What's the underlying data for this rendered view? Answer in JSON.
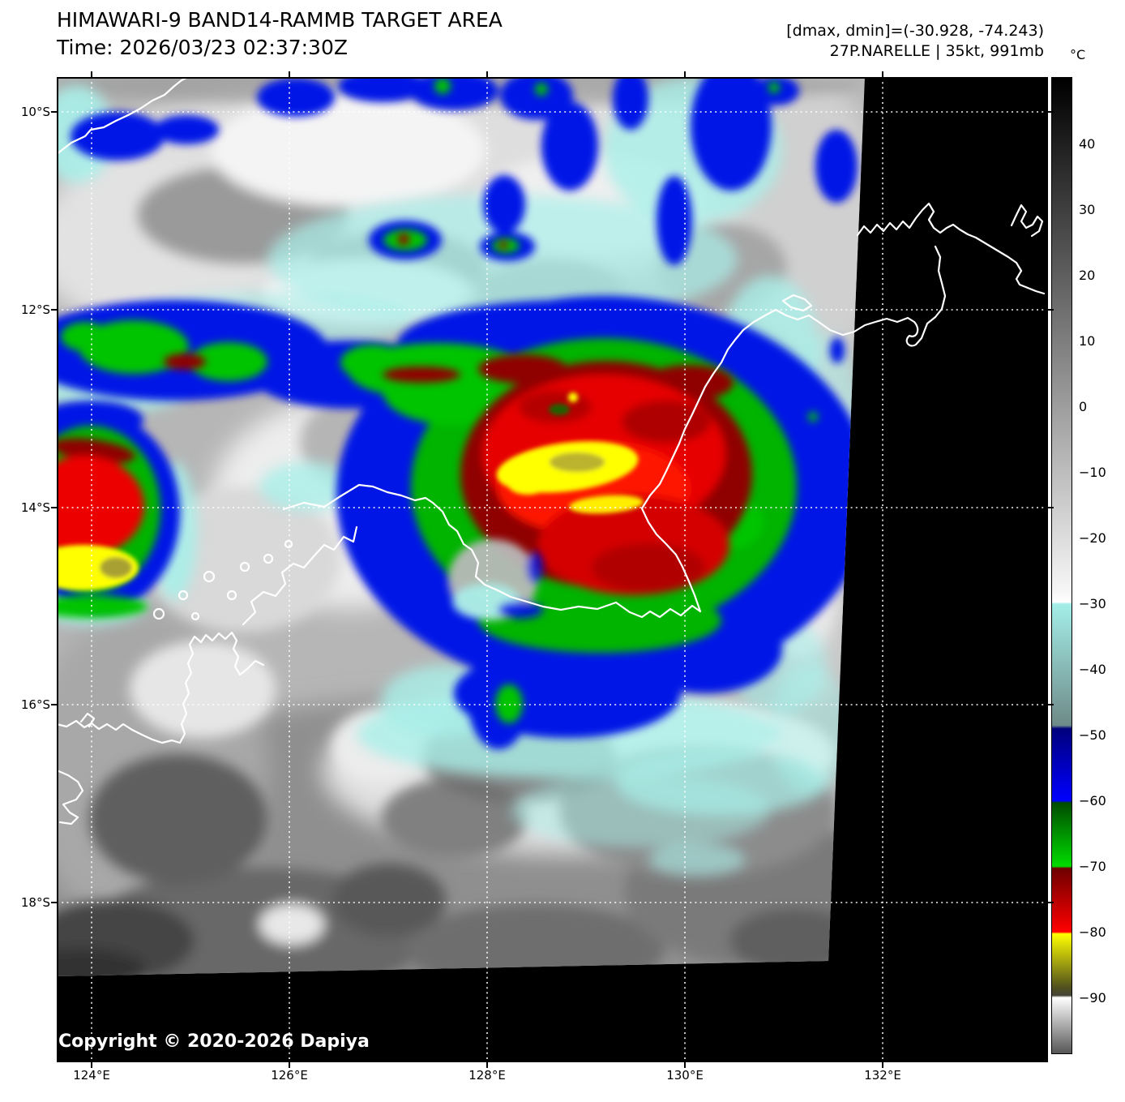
{
  "header": {
    "title": "HIMAWARI-9 BAND14-RAMMB TARGET AREA",
    "time": "Time: 2026/03/23 02:37:30Z",
    "dmax_dmin": "[dmax, dmin]=(-30.928, -74.243)",
    "storm": "27P.NARELLE | 35kt, 991mb"
  },
  "axes": {
    "lat_labels": [
      "10°S",
      "12°S",
      "14°S",
      "16°S",
      "18°S"
    ],
    "lon_labels": [
      "124°E",
      "126°E",
      "128°E",
      "130°E",
      "132°E"
    ]
  },
  "colorbar": {
    "unit": "°C",
    "tick_labels": [
      "40",
      "30",
      "20",
      "10",
      "0",
      "−10",
      "−20",
      "−30",
      "−40",
      "−50",
      "−60",
      "−70",
      "−80",
      "−90"
    ],
    "tick_values": [
      40,
      30,
      20,
      10,
      0,
      -10,
      -20,
      -30,
      -40,
      -50,
      -60,
      -70,
      -80,
      -90
    ],
    "palette": [
      {
        "t": 50,
        "c": "#000000"
      },
      {
        "t": -28,
        "c": "#f6f6f6"
      },
      {
        "t": -29.7,
        "c": "#ffffff"
      },
      {
        "t": -30,
        "c": "#a4eee8"
      },
      {
        "t": -48.5,
        "c": "#6e8a88"
      },
      {
        "t": -49,
        "c": "#00007c"
      },
      {
        "t": -60,
        "c": "#0000ff"
      },
      {
        "t": -60.3,
        "c": "#004b00"
      },
      {
        "t": -70,
        "c": "#00dc00"
      },
      {
        "t": -70.3,
        "c": "#6e0000"
      },
      {
        "t": -80,
        "c": "#ff0000"
      },
      {
        "t": -80.3,
        "c": "#ffff00"
      },
      {
        "t": -88.5,
        "c": "#50501e"
      },
      {
        "t": -89.7,
        "c": "#45453a"
      },
      {
        "t": -90,
        "c": "#ffffff"
      },
      {
        "t": -99,
        "c": "#565656"
      }
    ]
  },
  "footer": {
    "copyright": "Copyright © 2020-2026 Dapiya"
  }
}
